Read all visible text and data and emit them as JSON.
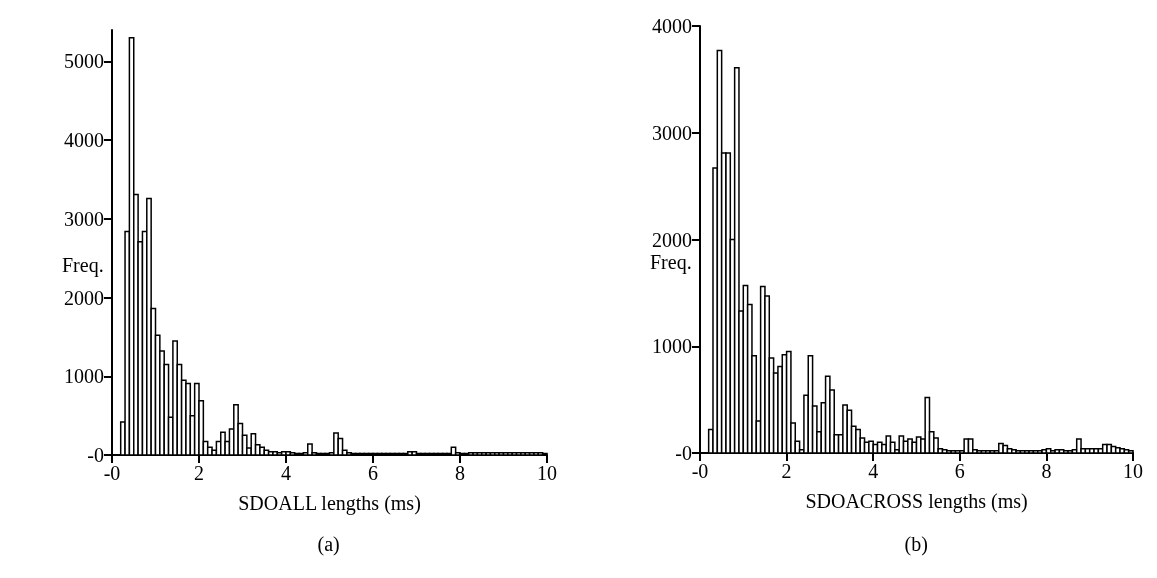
{
  "chart_data": [
    {
      "type": "histogram",
      "xlabel": "SDOALL lengths (ms)",
      "ylabel": "Freq.",
      "subtitle": "(a)",
      "bins": [
        0,
        0.1,
        0.2,
        0.3,
        0.4,
        0.5,
        0.6,
        0.7,
        0.8,
        0.9,
        1,
        1.1,
        1.2,
        1.3,
        1.4,
        1.5,
        1.6,
        1.7,
        1.8,
        1.9,
        2,
        2.1,
        2.2,
        2.3,
        2.4,
        2.5,
        2.6,
        2.7,
        2.8,
        2.9,
        3,
        3.1,
        3.2,
        3.3,
        3.4,
        3.5,
        3.6,
        3.7,
        3.8,
        3.9,
        4,
        4.1,
        4.2,
        4.3,
        4.4,
        4.5,
        4.6,
        4.7,
        4.8,
        4.9,
        5,
        5.1,
        5.2,
        5.3,
        5.4,
        5.5,
        5.6,
        5.7,
        5.8,
        5.9,
        6,
        6.1,
        6.2,
        6.3,
        6.4,
        6.5,
        6.6,
        6.7,
        6.8,
        6.9,
        7,
        7.1,
        7.2,
        7.3,
        7.4,
        7.5,
        7.6,
        7.7,
        7.8,
        7.9,
        8,
        8.1,
        8.2,
        8.3,
        8.4,
        8.5,
        8.6,
        8.7,
        8.8,
        8.9,
        9,
        9.1,
        9.2,
        9.3,
        9.4,
        9.5,
        9.6,
        9.7,
        9.8,
        9.9,
        10
      ],
      "values": [
        0,
        0,
        420,
        2840,
        5300,
        3310,
        2710,
        2840,
        3260,
        1860,
        1520,
        1320,
        1150,
        480,
        1450,
        1150,
        950,
        910,
        500,
        910,
        690,
        170,
        100,
        60,
        170,
        290,
        170,
        330,
        640,
        400,
        250,
        90,
        270,
        130,
        100,
        60,
        40,
        40,
        30,
        40,
        40,
        30,
        20,
        20,
        30,
        140,
        30,
        20,
        20,
        20,
        30,
        280,
        210,
        60,
        30,
        20,
        20,
        20,
        20,
        20,
        20,
        20,
        20,
        20,
        20,
        20,
        20,
        20,
        40,
        40,
        20,
        20,
        20,
        20,
        20,
        20,
        20,
        20,
        100,
        30,
        20,
        20,
        30,
        30,
        30,
        30,
        30,
        30,
        30,
        30,
        30,
        30,
        30,
        30,
        30,
        30,
        30,
        30,
        30,
        20
      ],
      "color": "#000000",
      "xlim": [
        0,
        10
      ],
      "xticks": [
        {
          "value": 0,
          "label": "-0"
        },
        2,
        4,
        6,
        8,
        10
      ],
      "ylim": [
        0,
        5400
      ],
      "yticks": [
        {
          "value": 0,
          "label": "-0"
        },
        1000,
        2000,
        3000,
        4000,
        5000
      ],
      "grid": false
    },
    {
      "type": "histogram",
      "xlabel": "SDOACROSS lengths (ms)",
      "ylabel": "Freq.",
      "subtitle": "(b)",
      "bins": [
        0,
        0.1,
        0.2,
        0.3,
        0.4,
        0.5,
        0.6,
        0.7,
        0.8,
        0.9,
        1,
        1.1,
        1.2,
        1.3,
        1.4,
        1.5,
        1.6,
        1.7,
        1.8,
        1.9,
        2,
        2.1,
        2.2,
        2.3,
        2.4,
        2.5,
        2.6,
        2.7,
        2.8,
        2.9,
        3,
        3.1,
        3.2,
        3.3,
        3.4,
        3.5,
        3.6,
        3.7,
        3.8,
        3.9,
        4,
        4.1,
        4.2,
        4.3,
        4.4,
        4.5,
        4.6,
        4.7,
        4.8,
        4.9,
        5,
        5.1,
        5.2,
        5.3,
        5.4,
        5.5,
        5.6,
        5.7,
        5.8,
        5.9,
        6,
        6.1,
        6.2,
        6.3,
        6.4,
        6.5,
        6.6,
        6.7,
        6.8,
        6.9,
        7,
        7.1,
        7.2,
        7.3,
        7.4,
        7.5,
        7.6,
        7.7,
        7.8,
        7.9,
        8,
        8.1,
        8.2,
        8.3,
        8.4,
        8.5,
        8.6,
        8.7,
        8.8,
        8.9,
        9,
        9.1,
        9.2,
        9.3,
        9.4,
        9.5,
        9.6,
        9.7,
        9.8,
        9.9,
        10
      ],
      "values": [
        0,
        0,
        220,
        2670,
        3770,
        2810,
        2810,
        2000,
        3610,
        1330,
        1570,
        1390,
        910,
        300,
        1560,
        1470,
        890,
        750,
        810,
        920,
        950,
        280,
        110,
        30,
        540,
        910,
        440,
        200,
        470,
        720,
        590,
        170,
        170,
        450,
        400,
        250,
        220,
        140,
        100,
        110,
        80,
        100,
        80,
        160,
        100,
        30,
        160,
        110,
        130,
        100,
        150,
        130,
        520,
        200,
        140,
        40,
        30,
        20,
        20,
        20,
        20,
        130,
        130,
        30,
        20,
        20,
        20,
        20,
        20,
        90,
        70,
        40,
        30,
        20,
        20,
        20,
        20,
        20,
        20,
        30,
        40,
        20,
        30,
        30,
        20,
        20,
        30,
        130,
        40,
        40,
        40,
        40,
        40,
        80,
        80,
        60,
        50,
        40,
        30,
        20
      ],
      "color": "#000000",
      "xlim": [
        0,
        10
      ],
      "xticks": [
        {
          "value": 0,
          "label": "-0"
        },
        2,
        4,
        6,
        8,
        10
      ],
      "ylim": [
        0,
        4000
      ],
      "yticks": [
        {
          "value": 0,
          "label": "-0"
        },
        1000,
        2000,
        3000,
        4000
      ],
      "grid": false
    }
  ]
}
